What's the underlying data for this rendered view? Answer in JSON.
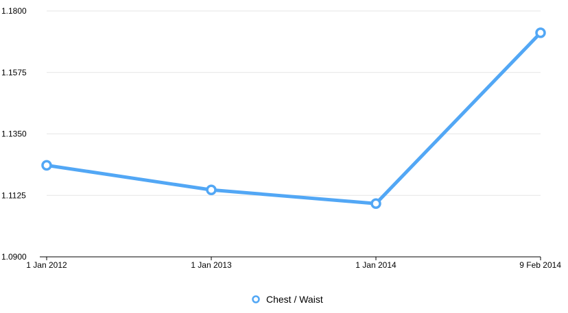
{
  "chart_data": {
    "type": "line",
    "x": [
      "1 Jan 2012",
      "1 Jan 2013",
      "1 Jan 2014",
      "9 Feb 2014"
    ],
    "xlabels": [
      "1 Jan 2012",
      "1 Jan 2013",
      "1 Jan 2014",
      "9 Feb 2014"
    ],
    "series": [
      {
        "name": "Chest / Waist",
        "color": "#52a7f5",
        "values": [
          1.1235,
          1.1145,
          1.1095,
          1.172
        ]
      }
    ],
    "ylim": [
      1.09,
      1.18
    ],
    "yticks": [
      "1.0900",
      "1.1125",
      "1.1350",
      "1.1575",
      "1.1800"
    ],
    "yticks_values": [
      1.09,
      1.1125,
      1.135,
      1.1575,
      1.18
    ],
    "grid": true,
    "legend_position": "bottom-center",
    "title": "",
    "xlabel": "",
    "ylabel": ""
  }
}
